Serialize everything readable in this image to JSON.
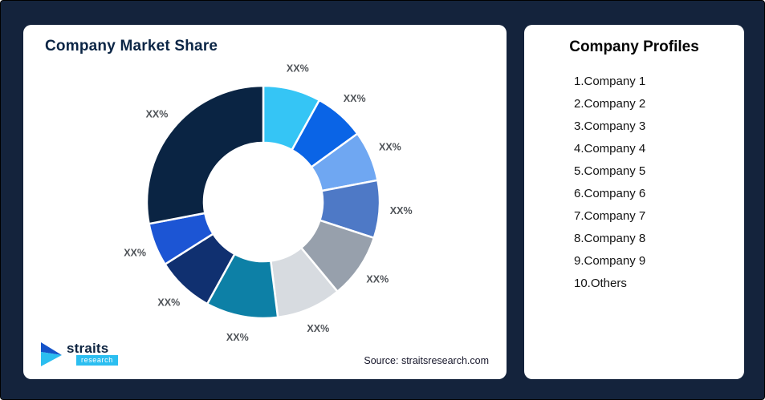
{
  "page": {
    "background_color": "#14233c",
    "card_color": "#ffffff"
  },
  "left_card": {
    "source_text": "Source: straitsresearch.com"
  },
  "logo": {
    "name": "straits",
    "sub": "research",
    "mark_color_dark": "#1553c9",
    "mark_color_cyan": "#2bbef0"
  },
  "right_card": {
    "title": "Company Profiles"
  },
  "profiles": {
    "items": [
      "Company 1",
      "Company 2",
      "Company 3",
      "Company 4",
      "Company 5",
      "Company 6",
      "Company 7",
      "Company 8",
      "Company 9",
      "Others"
    ]
  },
  "chart_data": {
    "type": "pie",
    "donut": true,
    "title": "Company Market Share",
    "legend_position": "none",
    "start_angle_deg": 0,
    "direction": "clockwise",
    "labels": [
      "Company 1",
      "Company 2",
      "Company 3",
      "Company 4",
      "Company 5",
      "Company 6",
      "Company 7",
      "Company 8",
      "Company 9",
      "Others"
    ],
    "values": [
      8,
      7,
      7,
      8,
      9,
      9,
      10,
      8,
      6,
      28
    ],
    "display_labels": [
      "XX%",
      "XX%",
      "XX%",
      "XX%",
      "XX%",
      "XX%",
      "XX%",
      "XX%",
      "XX%",
      "XX%"
    ],
    "colors": [
      "#35c5f5",
      "#0a64e6",
      "#6fa7f2",
      "#4e79c6",
      "#97a0ac",
      "#d7dbe0",
      "#0d80a6",
      "#103070",
      "#1c55d4",
      "#0a2443"
    ]
  }
}
